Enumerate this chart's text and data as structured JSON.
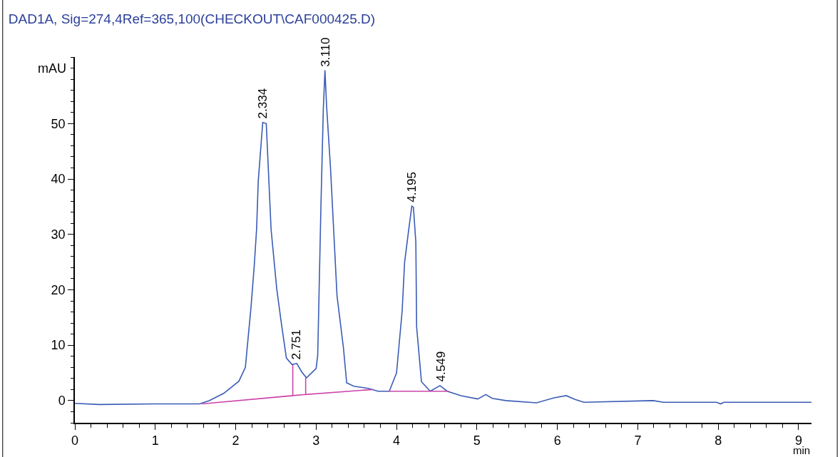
{
  "chart_data": {
    "type": "line",
    "title": "DAD1A, Sig=274,4Ref=365,100(CHECKOUT\\CAF000425.D)",
    "xlabel": "min",
    "ylabel": "mAU",
    "xlim": [
      0,
      9.16
    ],
    "ylim": [
      -4,
      62
    ],
    "xticks": [
      0,
      1,
      2,
      3,
      4,
      5,
      6,
      7,
      8,
      9
    ],
    "yticks": [
      0,
      10,
      20,
      30,
      40,
      50
    ],
    "marker": "none",
    "line_style": "solid",
    "series": [
      {
        "color": "#3a5cb5",
        "x": [
          0,
          0.3,
          1.0,
          1.55,
          1.67,
          1.85,
          2.04,
          2.12,
          2.19,
          2.23,
          2.26,
          2.28,
          2.336,
          2.38,
          2.44,
          2.51,
          2.57,
          2.63,
          2.7,
          2.76,
          2.82,
          2.88,
          3.0,
          3.02,
          3.06,
          3.09,
          3.11,
          3.13,
          3.18,
          3.26,
          3.34,
          3.38,
          3.47,
          3.65,
          3.77,
          3.91,
          4.0,
          4.07,
          4.1,
          4.15,
          4.19,
          4.21,
          4.24,
          4.25,
          4.31,
          4.42,
          4.54,
          4.63,
          4.8,
          5.01,
          5.11,
          5.19,
          5.36,
          5.74,
          5.96,
          6.11,
          6.22,
          6.33,
          7.19,
          7.32,
          7.98,
          8.03,
          8.07,
          9.16
        ],
        "values": [
          -0.5,
          -0.7,
          -0.6,
          -0.6,
          0,
          1.3,
          3.5,
          6.0,
          16.8,
          24.2,
          31,
          39.5,
          50.2,
          50,
          30.9,
          20.2,
          13.7,
          7.7,
          6.5,
          6.7,
          5.2,
          4.1,
          5.8,
          8.2,
          35.2,
          52.8,
          59.6,
          53.2,
          41.7,
          18.9,
          9.5,
          3.2,
          2.6,
          2.2,
          1.7,
          1.7,
          5.0,
          16.2,
          24.9,
          30.7,
          35.1,
          34.9,
          28.6,
          13.3,
          3.4,
          1.7,
          2.7,
          1.7,
          0.9,
          0.3,
          1.1,
          0.4,
          0,
          -0.4,
          0.5,
          0.9,
          0.2,
          -0.3,
          0,
          -0.3,
          -0.3,
          -0.6,
          -0.3,
          -0.3
        ]
      },
      {
        "color": "#cc44aa",
        "x": [
          1.58,
          2.71,
          2.71,
          2.71,
          2.87,
          2.87,
          2.87,
          3.7,
          null,
          3.9,
          4.65
        ],
        "values": [
          -0.6,
          0.9,
          6.5,
          0.9,
          1.1,
          4.1,
          1.1,
          2.0,
          null,
          1.7,
          1.7
        ]
      }
    ],
    "annotations": [
      {
        "text": "2.334",
        "x": 2.334,
        "y": 50.2
      },
      {
        "text": "2.751",
        "x": 2.751,
        "y": 6.7
      },
      {
        "text": "3.110",
        "x": 3.11,
        "y": 59.6
      },
      {
        "text": "4.195",
        "x": 4.195,
        "y": 35.1
      },
      {
        "text": "4.549",
        "x": 4.549,
        "y": 2.7
      }
    ]
  }
}
